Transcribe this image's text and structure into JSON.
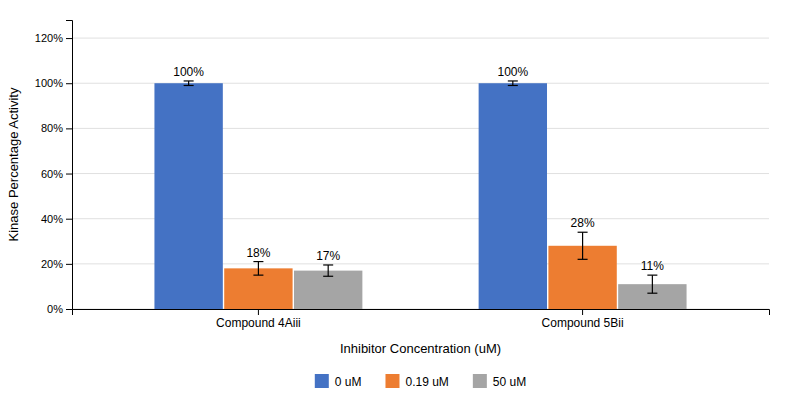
{
  "chart_data": {
    "type": "bar",
    "categories": [
      "Compound 4Aiii",
      "Compound 5Bii"
    ],
    "series": [
      {
        "name": "0 uM",
        "color": "#4472C4",
        "values": [
          100,
          100
        ],
        "errors": [
          1.0,
          1.0
        ],
        "value_labels": [
          "100%",
          "100%"
        ]
      },
      {
        "name": "0.19 uM",
        "color": "#ED7D31",
        "values": [
          18,
          28
        ],
        "errors": [
          3.0,
          6.0
        ],
        "value_labels": [
          "18%",
          "28%"
        ]
      },
      {
        "name": "50 uM",
        "color": "#A5A5A5",
        "values": [
          17,
          11
        ],
        "errors": [
          2.5,
          4.0
        ],
        "value_labels": [
          "17%",
          "11%"
        ]
      }
    ],
    "xlabel": "Inhibitor Concentration (uM)",
    "ylabel": "Kinase Percentage Activity",
    "ylim": [
      0,
      128
    ],
    "yticks": [
      {
        "value": 0,
        "label": "0%"
      },
      {
        "value": 20,
        "label": "20%"
      },
      {
        "value": 40,
        "label": "40%"
      },
      {
        "value": 60,
        "label": "60%"
      },
      {
        "value": 80,
        "label": "80%"
      },
      {
        "value": 100,
        "label": "100%"
      },
      {
        "value": 120,
        "label": "120%"
      }
    ],
    "grid": true,
    "legend": "bottom",
    "data_labels": true
  }
}
